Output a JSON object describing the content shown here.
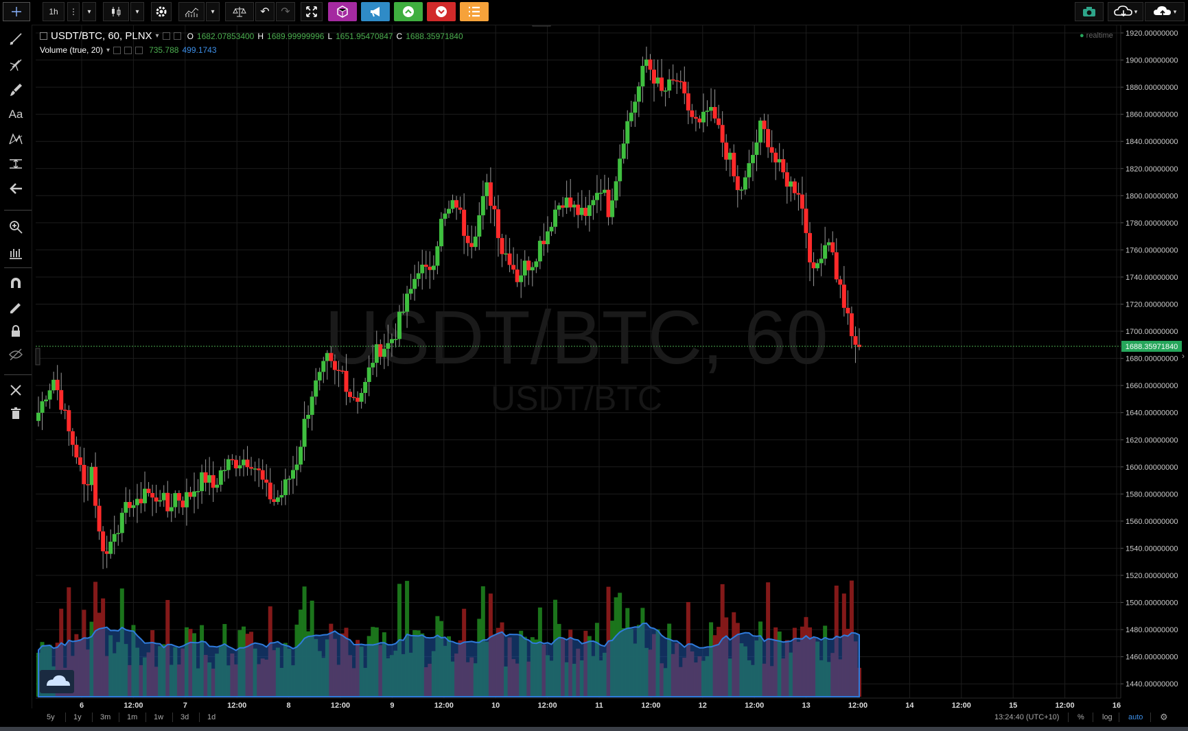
{
  "toolbar": {
    "interval": "1h",
    "buttons": [
      "crosshair-icon",
      "interval",
      "more-icon",
      "chart-style-icon",
      "settings-icon",
      "indicators-icon",
      "compare-icon",
      "undo-icon",
      "redo-icon",
      "fullscreen-icon",
      "cube-icon",
      "megaphone-icon",
      "buy-icon",
      "sell-icon",
      "list-icon"
    ],
    "right_buttons": [
      "camera-icon",
      "cloud-download-icon",
      "cloud-upload-icon"
    ],
    "colors": {
      "purple": "#a42aa0",
      "blue": "#2f8bc7",
      "green": "#3fae3f",
      "red": "#d12a2a",
      "orange": "#f6a23a"
    }
  },
  "legend": {
    "symbol": "USDT/BTC, 60, PLNX",
    "open_label": "O",
    "open": "1682.07853400",
    "high_label": "H",
    "high": "1689.99999996",
    "low_label": "L",
    "low": "1651.95470847",
    "close_label": "C",
    "close": "1688.35971840",
    "volume_title": "Volume (true, 20)",
    "volume_value": "735.788",
    "volume_ma": "499.1743",
    "realtime": "realtime"
  },
  "watermark": {
    "main": "USDT/BTC, 60",
    "sub": "USDT/BTC"
  },
  "price_axis": {
    "labels": [
      "1920.00000000",
      "1900.00000000",
      "1880.00000000",
      "1860.00000000",
      "1840.00000000",
      "1820.00000000",
      "1800.00000000",
      "1780.00000000",
      "1760.00000000",
      "1740.00000000",
      "1720.00000000",
      "1700.00000000",
      "1680.00000000",
      "1660.00000000",
      "1640.00000000",
      "1620.00000000",
      "1600.00000000",
      "1580.00000000",
      "1560.00000000",
      "1540.00000000",
      "1520.00000000",
      "1500.00000000",
      "1480.00000000",
      "1460.00000000",
      "1440.00000000"
    ],
    "last_price": "1688.35971840"
  },
  "time_axis": {
    "labels": [
      "6",
      "12:00",
      "7",
      "12:00",
      "8",
      "12:00",
      "9",
      "12:00",
      "10",
      "12:00",
      "11",
      "12:00",
      "12",
      "12:00",
      "13",
      "12:00",
      "14",
      "12:00",
      "15",
      "12:00",
      "16"
    ]
  },
  "bottombar": {
    "ranges": [
      "5y",
      "1y",
      "3m",
      "1m",
      "1w",
      "3d",
      "1d"
    ],
    "clock": "13:24:40 (UTC+10)",
    "percent": "%",
    "log": "log",
    "auto": "auto"
  },
  "chart_data": {
    "type": "candlestick",
    "ylim": [
      1430,
      1925
    ],
    "anchors_close": [
      1640,
      1655,
      1665,
      1648,
      1625,
      1610,
      1585,
      1600,
      1550,
      1535,
      1555,
      1560,
      1575,
      1570,
      1585,
      1575,
      1580,
      1568,
      1580,
      1575,
      1580,
      1588,
      1592,
      1585,
      1596,
      1602,
      1604,
      1606,
      1605,
      1595,
      1582,
      1575,
      1580,
      1592,
      1605,
      1632,
      1655,
      1665,
      1678,
      1668,
      1670,
      1654,
      1652,
      1660,
      1680,
      1688,
      1690,
      1700,
      1715,
      1730,
      1748,
      1742,
      1755,
      1780,
      1788,
      1795,
      1775,
      1768,
      1785,
      1805,
      1790,
      1760,
      1755,
      1740,
      1748,
      1752,
      1765,
      1775,
      1790,
      1798,
      1792,
      1788,
      1782,
      1800,
      1808,
      1790,
      1815,
      1845,
      1862,
      1880,
      1900,
      1888,
      1875,
      1880,
      1885,
      1870,
      1858,
      1850,
      1862,
      1855,
      1840,
      1825,
      1802,
      1810,
      1830,
      1850,
      1842,
      1825,
      1815,
      1808,
      1805,
      1775,
      1740,
      1760,
      1770,
      1742,
      1720,
      1695,
      1688
    ],
    "last_close": 1688.3597184,
    "volume_visible": true
  }
}
